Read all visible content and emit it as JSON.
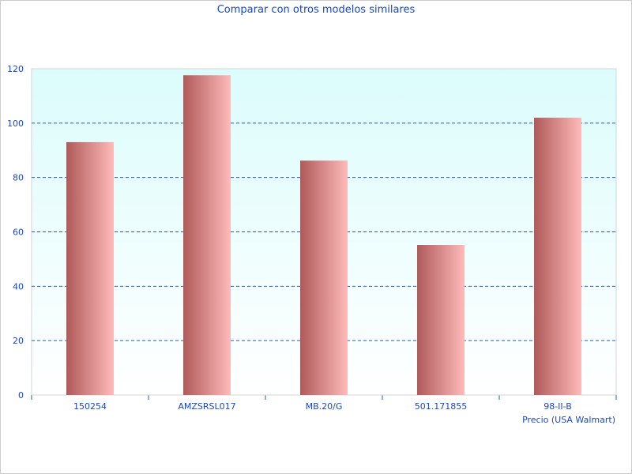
{
  "chart_data": {
    "type": "bar",
    "title": "Comparar con otros modelos similares",
    "xlabel": "Precio (USA Walmart)",
    "ylabel": "",
    "categories": [
      "150254",
      "AMZSRSL017",
      "MB.20/G",
      "501.171855",
      "98-II-B"
    ],
    "values": [
      93.0,
      117.6,
      86.2,
      55.2,
      102.0
    ],
    "ylim": [
      0,
      120
    ],
    "yticks": [
      0,
      20,
      40,
      60,
      80,
      100,
      120
    ],
    "grid": true,
    "legend": "none",
    "colors": {
      "bar_dark": "#b05a5a",
      "bar_light": "#ffbaba",
      "plot_bg_top": "#dcfcfc",
      "plot_bg_bottom": "#ffffff",
      "text": "#1a47c8",
      "grid": "#2a55c0"
    }
  }
}
